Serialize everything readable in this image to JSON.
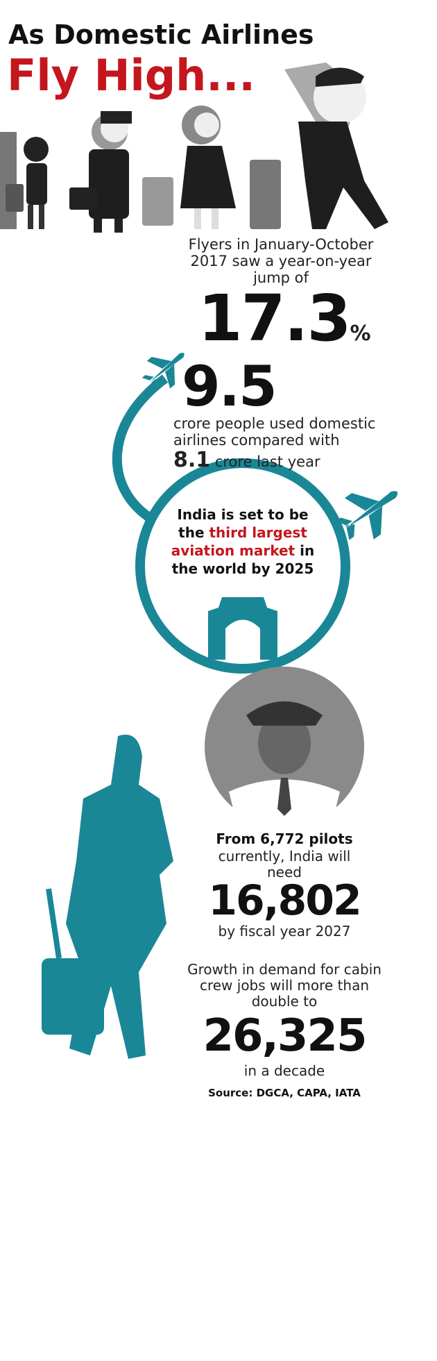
{
  "header": {
    "line1": "As Domestic Airlines",
    "line2": "Fly High..."
  },
  "flyers": {
    "text": "Flyers in January-October 2017 saw a year-on-year jump of",
    "value": "17.3",
    "unit": "%"
  },
  "passengers": {
    "value": "9.5",
    "text": "crore people used domestic airlines compared with",
    "previous": "8.1",
    "previous_text": "crore last year"
  },
  "outlook": {
    "before": "India is set to be the",
    "highlight": "third largest aviation market",
    "after": "in the world by 2025"
  },
  "pilots": {
    "intro": "From 6,772 pilots",
    "text": "currently, India will need",
    "value": "16,802",
    "after": "by fiscal year 2027"
  },
  "cabin_crew": {
    "text": "Growth in demand for cabin crew jobs will more than double to",
    "value": "26,325",
    "after": "in a decade"
  },
  "source": "Source: DGCA, CAPA, IATA"
}
